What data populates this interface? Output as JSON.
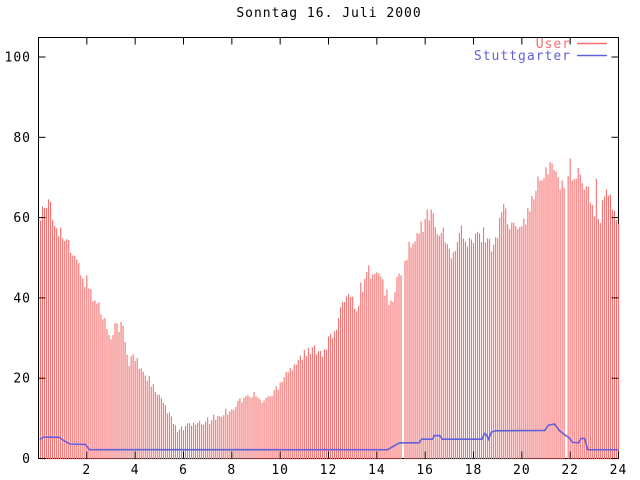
{
  "title": "Sonntag 16. Juli 2000",
  "colors": {
    "user": "#f77070",
    "stuttgarter": "#6161dd",
    "axis": "#000000",
    "background": "#ffffff"
  },
  "legend": {
    "position": "top-right-inside",
    "entries": [
      {
        "label": "User",
        "color": "#f77070"
      },
      {
        "label": "Stuttgarter",
        "color": "#6161dd"
      }
    ]
  },
  "chart_data": {
    "type": "mixed",
    "title": "Sonntag 16. Juli 2000",
    "xlabel": "",
    "ylabel": "",
    "xlim": [
      0,
      24
    ],
    "ylim": [
      0,
      100
    ],
    "x_ticks": [
      2,
      4,
      6,
      8,
      10,
      12,
      14,
      16,
      18,
      20,
      22,
      24
    ],
    "y_ticks": [
      0,
      20,
      40,
      60,
      80,
      100
    ],
    "grid": false,
    "legend_position": "top-right inside",
    "sample_interval_hours": 0.08333,
    "series": [
      {
        "name": "User",
        "type": "impulses",
        "color": "#f77070",
        "gaps_t": [
          15.1,
          21.8
        ],
        "envelope_points": [
          [
            0.08,
            60
          ],
          [
            0.2,
            62
          ],
          [
            0.33,
            60.5
          ],
          [
            0.45,
            66
          ],
          [
            0.58,
            60
          ],
          [
            0.75,
            58.5
          ],
          [
            1.0,
            55.5
          ],
          [
            1.25,
            52.5
          ],
          [
            1.5,
            49.5
          ],
          [
            1.8,
            46
          ],
          [
            2.1,
            42.5
          ],
          [
            2.35,
            39.5
          ],
          [
            2.6,
            36.5
          ],
          [
            2.85,
            32.5
          ],
          [
            3.0,
            31.5
          ],
          [
            3.15,
            33
          ],
          [
            3.35,
            33.4
          ],
          [
            3.5,
            32
          ],
          [
            3.62,
            28
          ],
          [
            3.72,
            22
          ],
          [
            3.82,
            25.5
          ],
          [
            4.0,
            24.8
          ],
          [
            4.25,
            22.5
          ],
          [
            4.5,
            20.5
          ],
          [
            4.75,
            17.5
          ],
          [
            5.0,
            15
          ],
          [
            5.25,
            13
          ],
          [
            5.5,
            9.5
          ],
          [
            5.75,
            7.5
          ],
          [
            6.0,
            7.8
          ],
          [
            6.3,
            8.4
          ],
          [
            6.6,
            8.2
          ],
          [
            6.9,
            9.2
          ],
          [
            7.2,
            9.8
          ],
          [
            7.5,
            10.6
          ],
          [
            7.8,
            11.8
          ],
          [
            8.1,
            13
          ],
          [
            8.4,
            14.8
          ],
          [
            8.7,
            15.4
          ],
          [
            9.0,
            15.8
          ],
          [
            9.15,
            14.2
          ],
          [
            9.4,
            14.9
          ],
          [
            9.65,
            15.8
          ],
          [
            9.9,
            18
          ],
          [
            10.15,
            21
          ],
          [
            10.45,
            22.8
          ],
          [
            10.75,
            24.6
          ],
          [
            11.0,
            26
          ],
          [
            11.25,
            26.3
          ],
          [
            11.5,
            27.6
          ],
          [
            11.7,
            26.4
          ],
          [
            11.95,
            28.8
          ],
          [
            12.2,
            30.8
          ],
          [
            12.45,
            33.5
          ],
          [
            12.6,
            40
          ],
          [
            12.8,
            42.5
          ],
          [
            13.0,
            39.5
          ],
          [
            13.2,
            38.5
          ],
          [
            13.45,
            44.5
          ],
          [
            13.7,
            47
          ],
          [
            13.95,
            45.5
          ],
          [
            14.2,
            43.5
          ],
          [
            14.45,
            41
          ],
          [
            14.65,
            37.5
          ],
          [
            14.85,
            44.5
          ],
          [
            15.05,
            48
          ],
          [
            15.3,
            51.5
          ],
          [
            15.55,
            53.5
          ],
          [
            15.75,
            56
          ],
          [
            15.95,
            58.5
          ],
          [
            16.15,
            61
          ],
          [
            16.35,
            59.5
          ],
          [
            16.55,
            57.5
          ],
          [
            16.75,
            55.5
          ],
          [
            16.95,
            52
          ],
          [
            17.25,
            51.5
          ],
          [
            17.5,
            57
          ],
          [
            17.7,
            53
          ],
          [
            18.0,
            54
          ],
          [
            18.25,
            55.5
          ],
          [
            18.5,
            56
          ],
          [
            18.7,
            53.2
          ],
          [
            18.95,
            54
          ],
          [
            19.1,
            61.5
          ],
          [
            19.25,
            63
          ],
          [
            19.45,
            58
          ],
          [
            19.65,
            57
          ],
          [
            19.85,
            59.5
          ],
          [
            20.1,
            60
          ],
          [
            20.3,
            61
          ],
          [
            20.5,
            66.5
          ],
          [
            20.75,
            69
          ],
          [
            20.95,
            70.5
          ],
          [
            21.15,
            72
          ],
          [
            21.3,
            73
          ],
          [
            21.5,
            70.5
          ],
          [
            21.65,
            68
          ],
          [
            21.88,
            66
          ],
          [
            21.97,
            75
          ],
          [
            22.1,
            70
          ],
          [
            22.3,
            71.5
          ],
          [
            22.5,
            70
          ],
          [
            22.7,
            67.5
          ],
          [
            22.85,
            64.5
          ],
          [
            23.0,
            58.5
          ],
          [
            23.08,
            69.5
          ],
          [
            23.18,
            58.5
          ],
          [
            23.35,
            63.5
          ],
          [
            23.55,
            66
          ],
          [
            23.7,
            64
          ],
          [
            23.85,
            60.5
          ],
          [
            24.0,
            57.5
          ]
        ]
      },
      {
        "name": "Stuttgarter",
        "type": "line",
        "color": "#6161dd",
        "points": [
          [
            0.05,
            4.7
          ],
          [
            0.2,
            5.3
          ],
          [
            0.85,
            5.3
          ],
          [
            1.0,
            4.6
          ],
          [
            1.3,
            3.6
          ],
          [
            1.95,
            3.5
          ],
          [
            2.1,
            2.2
          ],
          [
            14.45,
            2.2
          ],
          [
            14.75,
            3.3
          ],
          [
            14.95,
            3.9
          ],
          [
            15.75,
            3.9
          ],
          [
            15.85,
            4.8
          ],
          [
            16.3,
            4.8
          ],
          [
            16.38,
            5.7
          ],
          [
            16.6,
            5.7
          ],
          [
            16.7,
            4.8
          ],
          [
            18.35,
            4.8
          ],
          [
            18.45,
            6.2
          ],
          [
            18.55,
            5.8
          ],
          [
            18.62,
            4.8
          ],
          [
            18.75,
            6.6
          ],
          [
            18.9,
            6.9
          ],
          [
            20.95,
            7.0
          ],
          [
            21.1,
            8.3
          ],
          [
            21.35,
            8.6
          ],
          [
            21.55,
            7.0
          ],
          [
            21.75,
            6.0
          ],
          [
            21.95,
            5.2
          ],
          [
            22.1,
            4.0
          ],
          [
            22.35,
            3.9
          ],
          [
            22.45,
            5.0
          ],
          [
            22.6,
            5.0
          ],
          [
            22.72,
            2.2
          ],
          [
            24.0,
            2.2
          ]
        ]
      }
    ]
  }
}
